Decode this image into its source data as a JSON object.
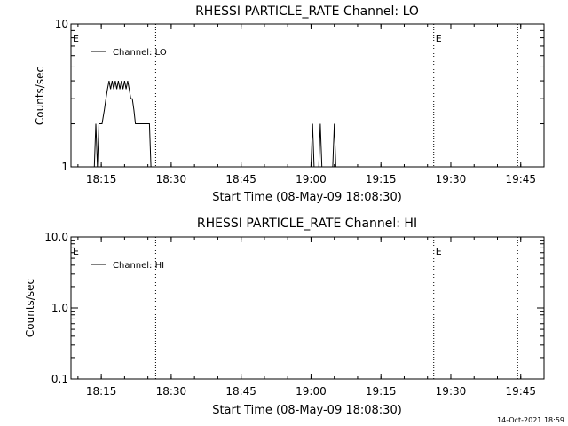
{
  "footer": {
    "timestamp": "14-Oct-2021 18:59"
  },
  "chart_data": [
    {
      "type": "line",
      "title": "RHESSI PARTICLE_RATE Channel: LO",
      "xlabel": "Start Time (08-May-09 18:08:30)",
      "ylabel": "Counts/sec",
      "yscale": "log",
      "ylim": [
        1,
        10
      ],
      "xlim": [
        "18:08:30",
        "19:50:00"
      ],
      "x_ticks": [
        "18:15",
        "18:30",
        "18:45",
        "19:00",
        "19:15",
        "19:30",
        "19:45"
      ],
      "y_ticks": [
        "1",
        "10"
      ],
      "legend": {
        "position": "top-left",
        "entries": [
          "Channel: LO"
        ]
      },
      "series": [
        {
          "name": "Channel: LO",
          "points": [
            [
              "18:13:30",
              1
            ],
            [
              "18:13:50",
              2
            ],
            [
              "18:14:10",
              1
            ],
            [
              "18:14:30",
              2
            ],
            [
              "18:15:10",
              2
            ],
            [
              "18:15:40",
              2.5
            ],
            [
              "18:16:00",
              3
            ],
            [
              "18:16:20",
              3.5
            ],
            [
              "18:16:40",
              4
            ],
            [
              "18:17:00",
              3.5
            ],
            [
              "18:17:20",
              4
            ],
            [
              "18:17:40",
              3.5
            ],
            [
              "18:18:00",
              4
            ],
            [
              "18:18:20",
              3.5
            ],
            [
              "18:18:40",
              4
            ],
            [
              "18:19:00",
              3.5
            ],
            [
              "18:19:20",
              4
            ],
            [
              "18:19:40",
              3.5
            ],
            [
              "18:20:00",
              4
            ],
            [
              "18:20:20",
              3.5
            ],
            [
              "18:20:40",
              4
            ],
            [
              "18:21:00",
              3.5
            ],
            [
              "18:21:20",
              3
            ],
            [
              "18:21:40",
              3
            ],
            [
              "18:22:00",
              2.5
            ],
            [
              "18:22:20",
              2
            ],
            [
              "18:23:00",
              2
            ],
            [
              "18:25:20",
              2
            ],
            [
              "18:25:40",
              1
            ],
            [
              "19:00:00",
              1
            ],
            [
              "19:00:20",
              2
            ],
            [
              "19:00:40",
              1
            ],
            [
              "19:01:40",
              1
            ],
            [
              "19:02:00",
              2
            ],
            [
              "19:02:20",
              1
            ],
            [
              "19:04:40",
              1
            ],
            [
              "19:05:00",
              2
            ],
            [
              "19:05:20",
              1
            ]
          ]
        }
      ],
      "markers": [
        {
          "time": "18:26:40",
          "label": ""
        },
        {
          "time": "19:26:20",
          "label": "E"
        },
        {
          "time": "19:44:20",
          "label": ""
        }
      ],
      "start_label": "E"
    },
    {
      "type": "line",
      "title": "RHESSI PARTICLE_RATE Channel: HI",
      "xlabel": "Start Time (08-May-09 18:08:30)",
      "ylabel": "Counts/sec",
      "yscale": "log",
      "ylim": [
        0.1,
        10
      ],
      "xlim": [
        "18:08:30",
        "19:50:00"
      ],
      "x_ticks": [
        "18:15",
        "18:30",
        "18:45",
        "19:00",
        "19:15",
        "19:30",
        "19:45"
      ],
      "y_ticks": [
        "0.1",
        "1.0",
        "10.0"
      ],
      "legend": {
        "position": "top-left",
        "entries": [
          "Channel: HI"
        ]
      },
      "series": [
        {
          "name": "Channel: HI",
          "points": []
        }
      ],
      "markers": [
        {
          "time": "18:26:40",
          "label": ""
        },
        {
          "time": "19:26:20",
          "label": "E"
        },
        {
          "time": "19:44:20",
          "label": ""
        }
      ],
      "start_label": "E"
    }
  ]
}
